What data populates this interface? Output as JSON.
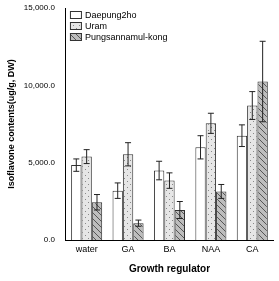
{
  "chart_data": {
    "type": "bar",
    "x_label": "Growth regulator",
    "y_label": "Isoflavone contents(ug/g, DW)",
    "categories": [
      "water",
      "GA",
      "BA",
      "NAA",
      "CA"
    ],
    "series": [
      {
        "name": "Daepung2ho",
        "color": "#ffffff",
        "values": [
          4850,
          3200,
          4500,
          6000,
          6750
        ],
        "errors": [
          400,
          500,
          600,
          750,
          700
        ]
      },
      {
        "name": "Uram",
        "color": "#e6e6e6",
        "values": [
          5400,
          5550,
          3850,
          7550,
          8700
        ],
        "errors": [
          450,
          750,
          500,
          650,
          900
        ]
      },
      {
        "name": "Pungsannamul-kong",
        "color": "#bdbdbd",
        "values": [
          2450,
          1100,
          1950,
          3150,
          10250
        ],
        "errors": [
          500,
          200,
          550,
          450,
          2600
        ]
      }
    ],
    "ylim": [
      0,
      15000
    ],
    "yticks": [
      {
        "value": 0,
        "label": "0.0"
      },
      {
        "value": 5000,
        "label": "5,000.0"
      },
      {
        "value": 10000,
        "label": "10,000.0"
      },
      {
        "value": 15000,
        "label": "15,000.0"
      }
    ],
    "grid": false,
    "legend": "upper left"
  }
}
